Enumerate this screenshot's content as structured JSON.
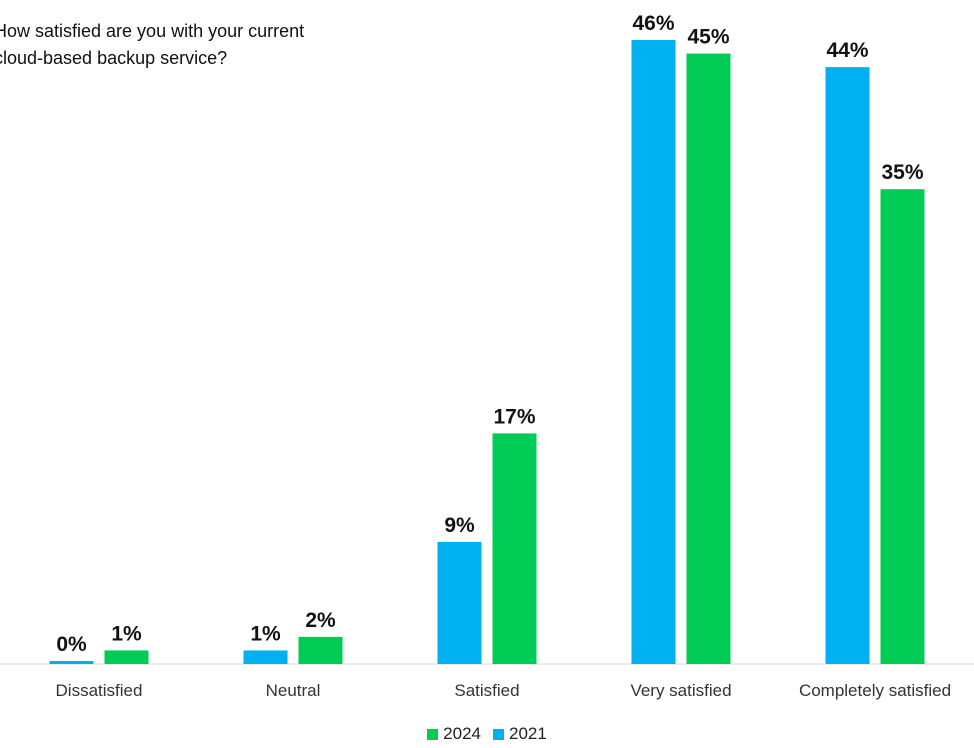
{
  "chart_data": {
    "type": "bar",
    "title": "How satisfied are you with your current\ncloud-based backup service?",
    "categories": [
      "Dissatisfied",
      "Neutral",
      "Satisfied",
      "Very satisfied",
      "Completely satisfied"
    ],
    "series": [
      {
        "name": "2021",
        "color": "#00b0f0",
        "values": [
          0,
          1,
          9,
          46,
          44
        ],
        "labels": [
          "0%",
          "1%",
          "9%",
          "46%",
          "44%"
        ]
      },
      {
        "name": "2024",
        "color": "#00cc55",
        "values": [
          1,
          2,
          17,
          45,
          35
        ],
        "labels": [
          "1%",
          "2%",
          "17%",
          "45%",
          "35%"
        ]
      }
    ],
    "legend": {
      "position": "bottom",
      "entries": [
        {
          "label": "2024",
          "color": "#00cc55"
        },
        {
          "label": "2021",
          "color": "#00b0f0"
        }
      ]
    },
    "ylim": [
      0,
      46
    ],
    "grid": false,
    "xlabel": "",
    "ylabel": ""
  }
}
